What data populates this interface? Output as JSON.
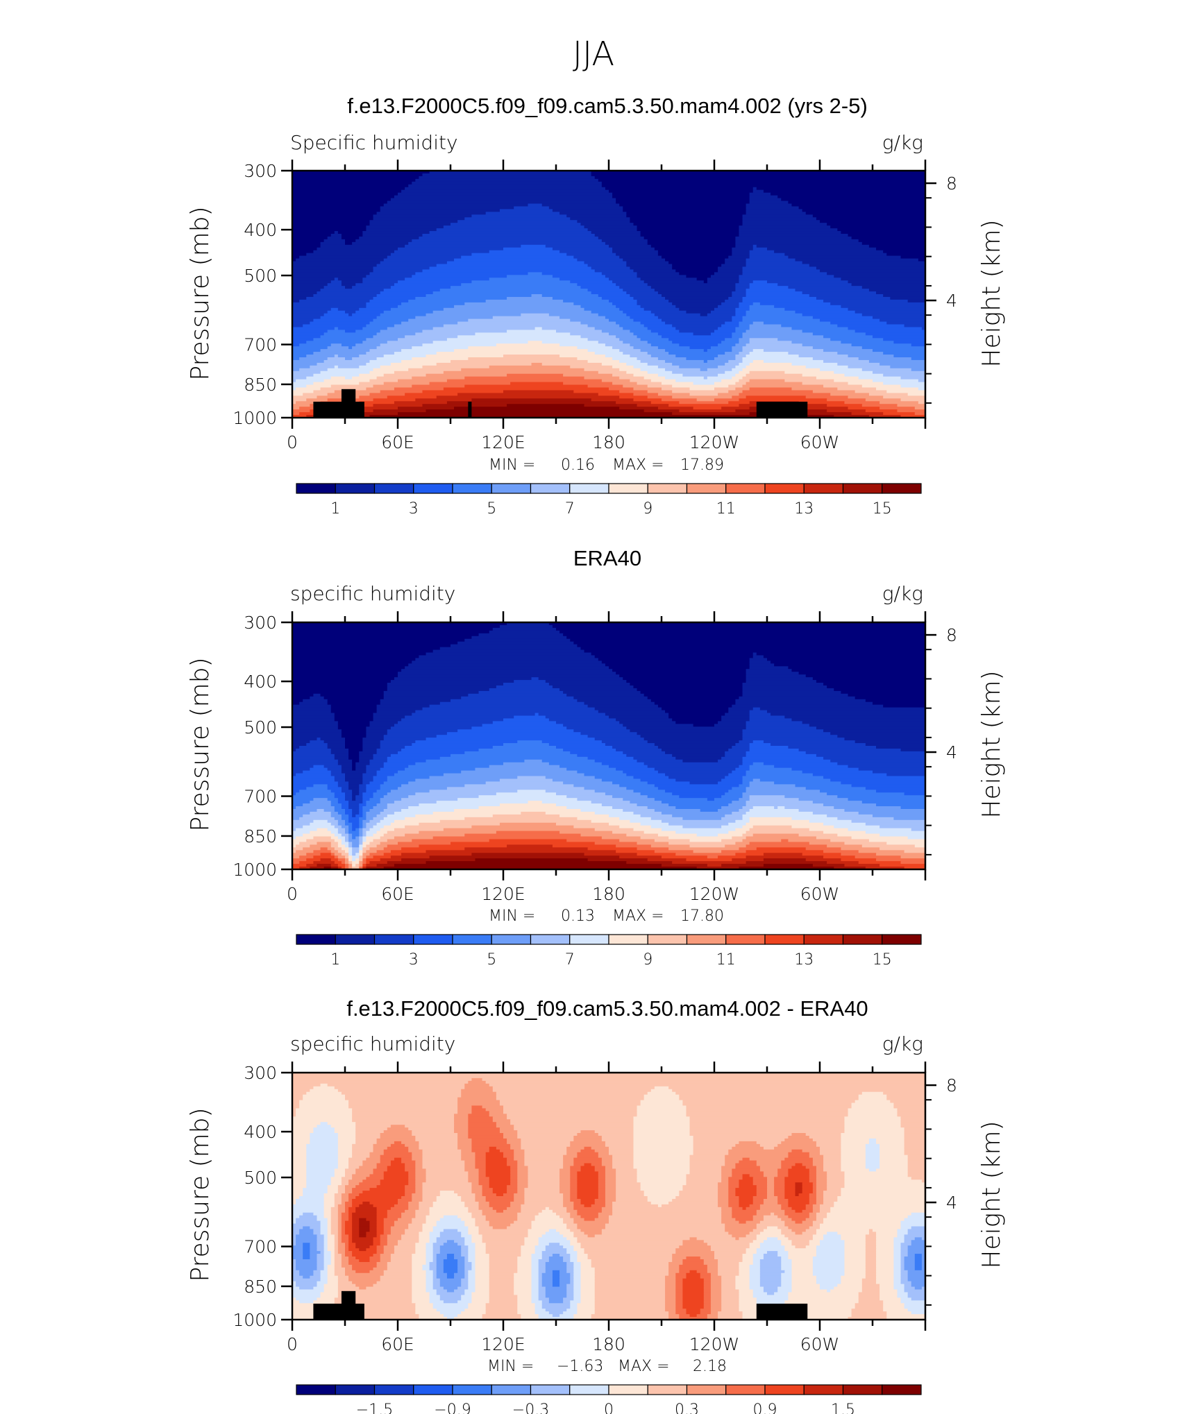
{
  "page": {
    "title": "JJA"
  },
  "panels": [
    {
      "title": "f.e13.F2000C5.f09_f09.cam5.3.50.mam4.002 (yrs 2-5)",
      "left_label": "Specific humidity",
      "right_label": "g/kg",
      "min_label": "MIN =",
      "min_value": "0.16",
      "max_label": "MAX =",
      "max_value": "17.89"
    },
    {
      "title": "ERA40",
      "left_label": "specific humidity",
      "right_label": "g/kg",
      "min_label": "MIN =",
      "min_value": "0.13",
      "max_label": "MAX =",
      "max_value": "17.80"
    },
    {
      "title": "f.e13.F2000C5.f09_f09.cam5.3.50.mam4.002 - ERA40",
      "left_label": "specific humidity",
      "right_label": "g/kg",
      "min_label": "MIN =",
      "min_value": "−1.63",
      "max_label": "MAX =",
      "max_value": "2.18"
    }
  ],
  "axes": {
    "ylabel": "Pressure (mb)",
    "ylabel_right": "Height (km)",
    "yticks": [
      300,
      400,
      500,
      700,
      850,
      1000
    ],
    "yticks_right": [
      8,
      4
    ],
    "xticks": [
      "0",
      "60E",
      "120E",
      "180",
      "120W",
      "60W"
    ]
  },
  "colorbars": {
    "absolute": {
      "colors": [
        "#00007a",
        "#0a1f9e",
        "#133cc8",
        "#1f5cf0",
        "#3a7cf6",
        "#6e9ef8",
        "#a3c0fb",
        "#d6e6fd",
        "#fde6d6",
        "#fcc4ad",
        "#f99c7c",
        "#f66d4a",
        "#ee4420",
        "#c8260f",
        "#a11106",
        "#7e0000"
      ],
      "labels": [
        "1",
        "3",
        "5",
        "7",
        "9",
        "11",
        "13",
        "15"
      ]
    },
    "difference": {
      "colors": [
        "#00007a",
        "#0a1f9e",
        "#133cc8",
        "#1f5cf0",
        "#3a7cf6",
        "#6e9ef8",
        "#a3c0fb",
        "#d6e6fd",
        "#fde6d6",
        "#fcc4ad",
        "#f99c7c",
        "#f66d4a",
        "#ee4420",
        "#c8260f",
        "#a11106",
        "#7e0000"
      ],
      "labels": [
        "−1.5",
        "−0.9",
        "−0.3",
        "0",
        "0.3",
        "0.9",
        "1.5"
      ]
    }
  },
  "chart_data": [
    {
      "type": "heatmap",
      "x_range_deg": [
        0,
        360
      ],
      "ylim_mb": [
        1000,
        300
      ],
      "levels": [
        1,
        2,
        3,
        4,
        5,
        6,
        7,
        8,
        9,
        10,
        11,
        12,
        13,
        14,
        15
      ],
      "min": 0.16,
      "max": 17.89,
      "surface_q_profile": [
        [
          0,
          12.5
        ],
        [
          12,
          13.6
        ],
        [
          25,
          14.6
        ],
        [
          32,
          14.8
        ],
        [
          45,
          15.3
        ],
        [
          60,
          15.8
        ],
        [
          80,
          16.3
        ],
        [
          100,
          16.9
        ],
        [
          120,
          17.0
        ],
        [
          140,
          17.2
        ],
        [
          160,
          17.3
        ],
        [
          180,
          17.2
        ],
        [
          200,
          16.7
        ],
        [
          220,
          16.0
        ],
        [
          240,
          15.4
        ],
        [
          262,
          15.8
        ],
        [
          280,
          16.1
        ],
        [
          300,
          15.6
        ],
        [
          320,
          14.8
        ],
        [
          340,
          13.6
        ],
        [
          360,
          12.5
        ]
      ],
      "moist_depth_profile": [
        [
          0,
          0.78
        ],
        [
          12,
          0.8
        ],
        [
          25,
          0.88
        ],
        [
          32,
          0.8
        ],
        [
          40,
          0.85
        ],
        [
          50,
          0.96
        ],
        [
          65,
          1.05
        ],
        [
          80,
          1.12
        ],
        [
          100,
          1.18
        ],
        [
          120,
          1.22
        ],
        [
          140,
          1.25
        ],
        [
          160,
          1.15
        ],
        [
          180,
          1.0
        ],
        [
          200,
          0.8
        ],
        [
          220,
          0.65
        ],
        [
          235,
          0.62
        ],
        [
          250,
          0.75
        ],
        [
          262,
          1.05
        ],
        [
          270,
          1.02
        ],
        [
          285,
          0.96
        ],
        [
          300,
          0.9
        ],
        [
          320,
          0.83
        ],
        [
          340,
          0.78
        ],
        [
          360,
          0.78
        ]
      ],
      "topography_black": true
    },
    {
      "type": "heatmap",
      "x_range_deg": [
        0,
        360
      ],
      "ylim_mb": [
        1000,
        300
      ],
      "levels": [
        1,
        2,
        3,
        4,
        5,
        6,
        7,
        8,
        9,
        10,
        11,
        12,
        13,
        14,
        15
      ],
      "min": 0.13,
      "max": 17.8,
      "surface_q_profile": [
        [
          0,
          12.8
        ],
        [
          12,
          14.5
        ],
        [
          20,
          15.8
        ],
        [
          30,
          13.0
        ],
        [
          36,
          9.0
        ],
        [
          42,
          14.5
        ],
        [
          60,
          16.0
        ],
        [
          80,
          16.5
        ],
        [
          100,
          16.8
        ],
        [
          120,
          17.0
        ],
        [
          140,
          17.1
        ],
        [
          160,
          17.1
        ],
        [
          180,
          16.9
        ],
        [
          200,
          16.4
        ],
        [
          220,
          15.8
        ],
        [
          240,
          15.0
        ],
        [
          262,
          15.5
        ],
        [
          280,
          16.5
        ],
        [
          300,
          15.8
        ],
        [
          320,
          14.6
        ],
        [
          340,
          13.6
        ],
        [
          360,
          12.8
        ]
      ],
      "moist_depth_profile": [
        [
          0,
          0.8
        ],
        [
          15,
          0.82
        ],
        [
          25,
          0.7
        ],
        [
          35,
          0.55
        ],
        [
          42,
          0.65
        ],
        [
          55,
          0.85
        ],
        [
          70,
          0.95
        ],
        [
          90,
          1.0
        ],
        [
          110,
          1.05
        ],
        [
          125,
          1.1
        ],
        [
          140,
          1.12
        ],
        [
          160,
          1.0
        ],
        [
          180,
          0.9
        ],
        [
          200,
          0.78
        ],
        [
          220,
          0.66
        ],
        [
          240,
          0.66
        ],
        [
          255,
          0.8
        ],
        [
          262,
          1.0
        ],
        [
          275,
          0.92
        ],
        [
          290,
          0.88
        ],
        [
          310,
          0.82
        ],
        [
          335,
          0.78
        ],
        [
          360,
          0.8
        ]
      ],
      "topography_black": false
    },
    {
      "type": "heatmap",
      "x_range_deg": [
        0,
        360
      ],
      "ylim_mb": [
        1000,
        300
      ],
      "levels": [
        -2.1,
        -1.8,
        -1.5,
        -1.2,
        -0.9,
        -0.6,
        -0.3,
        0,
        0.3,
        0.6,
        0.9,
        1.2,
        1.5,
        1.8,
        2.1
      ],
      "min": -1.63,
      "max": 2.18,
      "anomaly_centers": [
        {
          "lon": 8,
          "p": 720,
          "amp": -1.3
        },
        {
          "lon": 18,
          "p": 450,
          "amp": -0.6
        },
        {
          "lon": 40,
          "p": 640,
          "amp": 1.5
        },
        {
          "lon": 60,
          "p": 500,
          "amp": 1.0
        },
        {
          "lon": 90,
          "p": 770,
          "amp": -1.35
        },
        {
          "lon": 105,
          "p": 380,
          "amp": 0.6
        },
        {
          "lon": 118,
          "p": 500,
          "amp": 1.0
        },
        {
          "lon": 150,
          "p": 820,
          "amp": -1.3
        },
        {
          "lon": 168,
          "p": 520,
          "amp": 1.1
        },
        {
          "lon": 210,
          "p": 430,
          "amp": -0.3
        },
        {
          "lon": 228,
          "p": 880,
          "amp": 1.1
        },
        {
          "lon": 258,
          "p": 540,
          "amp": 1.0
        },
        {
          "lon": 272,
          "p": 780,
          "amp": -0.9
        },
        {
          "lon": 288,
          "p": 530,
          "amp": 1.2
        },
        {
          "lon": 305,
          "p": 740,
          "amp": -0.6
        },
        {
          "lon": 330,
          "p": 450,
          "amp": -0.4
        },
        {
          "lon": 356,
          "p": 760,
          "amp": -1.3
        }
      ],
      "topography_black": true
    }
  ]
}
